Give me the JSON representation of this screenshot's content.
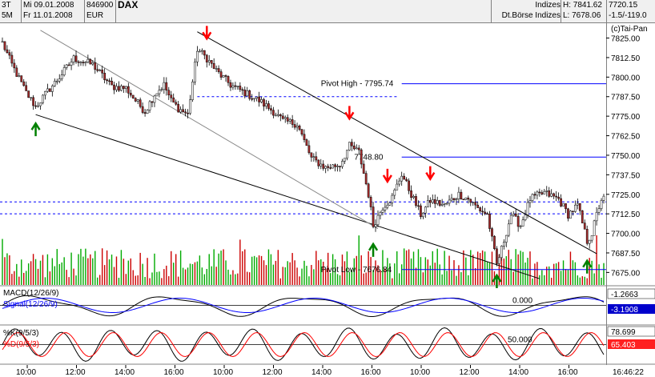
{
  "header": {
    "period_top": "3T",
    "period_bottom": "5M",
    "date_from": "Mi 09.01.2008",
    "date_to": "Fr 11.01.2008",
    "wkn": "846900",
    "currency": "EUR",
    "symbol": "DAX",
    "category": "Indizes",
    "exchange": "Dt.Börse Indizes",
    "high": "H: 7841.62",
    "low": "L: 7678.06",
    "last": "7720.15",
    "change": "-1.5/-119.0"
  },
  "colors": {
    "candle_up": "#ffffff",
    "candle_down": "#a52a2a",
    "volume_up": "#00aa00",
    "volume_down": "#cc0000",
    "trendline": "#000000",
    "pivot_line": "#0000ff",
    "arrow_down": "#ff0000",
    "arrow_up": "#008000",
    "macd": "#000000",
    "signal": "#0000ff",
    "stoch_k": "#000000",
    "stoch_d": "#ff0000"
  },
  "chart_data": {
    "type": "candlestick",
    "title": "DAX",
    "copyright": "(c)Tai-Pan",
    "ylim": [
      7667,
      7835
    ],
    "y_ticks": [
      "7825.00",
      "7812.50",
      "7800.00",
      "7787.50",
      "7775.00",
      "7762.50",
      "7750.00",
      "7737.50",
      "7725.00",
      "7712.50",
      "7700.00",
      "7687.50",
      "7675.00"
    ],
    "x_ticks": [
      "10:00",
      "12:00",
      "14:00",
      "16:00",
      "10:00",
      "12:00",
      "14:00",
      "16:00",
      "10:00",
      "12:00",
      "14:00",
      "16:00"
    ],
    "close_path": [
      {
        "t": 0,
        "p": 7822
      },
      {
        "t": 4,
        "p": 7808
      },
      {
        "t": 10,
        "p": 7790
      },
      {
        "t": 14,
        "p": 7781
      },
      {
        "t": 18,
        "p": 7789
      },
      {
        "t": 24,
        "p": 7800
      },
      {
        "t": 30,
        "p": 7812
      },
      {
        "t": 38,
        "p": 7808
      },
      {
        "t": 46,
        "p": 7794
      },
      {
        "t": 52,
        "p": 7793
      },
      {
        "t": 56,
        "p": 7785
      },
      {
        "t": 60,
        "p": 7778
      },
      {
        "t": 64,
        "p": 7789
      },
      {
        "t": 68,
        "p": 7795
      },
      {
        "t": 71,
        "p": 7785
      },
      {
        "t": 74,
        "p": 7780
      },
      {
        "t": 78,
        "p": 7776
      },
      {
        "t": 82,
        "p": 7818
      },
      {
        "t": 86,
        "p": 7812
      },
      {
        "t": 90,
        "p": 7804
      },
      {
        "t": 96,
        "p": 7795
      },
      {
        "t": 102,
        "p": 7790
      },
      {
        "t": 108,
        "p": 7785
      },
      {
        "t": 114,
        "p": 7778
      },
      {
        "t": 118,
        "p": 7772
      },
      {
        "t": 124,
        "p": 7770
      },
      {
        "t": 130,
        "p": 7748
      },
      {
        "t": 136,
        "p": 7742
      },
      {
        "t": 142,
        "p": 7744
      },
      {
        "t": 146,
        "p": 7756
      },
      {
        "t": 150,
        "p": 7752
      },
      {
        "t": 154,
        "p": 7725
      },
      {
        "t": 156,
        "p": 7705
      },
      {
        "t": 160,
        "p": 7717
      },
      {
        "t": 164,
        "p": 7723
      },
      {
        "t": 168,
        "p": 7738
      },
      {
        "t": 172,
        "p": 7725
      },
      {
        "t": 176,
        "p": 7712
      },
      {
        "t": 180,
        "p": 7721
      },
      {
        "t": 186,
        "p": 7718
      },
      {
        "t": 192,
        "p": 7725
      },
      {
        "t": 196,
        "p": 7722
      },
      {
        "t": 200,
        "p": 7716
      },
      {
        "t": 204,
        "p": 7712
      },
      {
        "t": 208,
        "p": 7680
      },
      {
        "t": 210,
        "p": 7690
      },
      {
        "t": 214,
        "p": 7712
      },
      {
        "t": 218,
        "p": 7705
      },
      {
        "t": 222,
        "p": 7722
      },
      {
        "t": 228,
        "p": 7726
      },
      {
        "t": 234,
        "p": 7722
      },
      {
        "t": 238,
        "p": 7712
      },
      {
        "t": 242,
        "p": 7718
      },
      {
        "t": 246,
        "p": 7695
      },
      {
        "t": 248,
        "p": 7700
      },
      {
        "t": 250,
        "p": 7712
      },
      {
        "t": 252,
        "p": 7722
      }
    ],
    "pivot_high": {
      "label": "Pivot High - 7795.74",
      "value": 7795.74
    },
    "level_2": {
      "label": "7748.80",
      "value": 7748.8
    },
    "pivot_low": {
      "label": "Pivot Low - 7676.84",
      "value": 7676.84
    },
    "dashed_levels": [
      7787.5,
      7720.15,
      7712.5
    ],
    "trendlines": [
      {
        "t1": 14,
        "p1": 7776,
        "t2": 226,
        "p2": 7671
      },
      {
        "t1": 82,
        "p1": 7829,
        "t2": 250,
        "p2": 7687
      },
      {
        "t1": 16,
        "p1": 7830,
        "t2": 158,
        "p2": 7703
      }
    ],
    "down_arrows": [
      86,
      146,
      162,
      180
    ],
    "up_arrows": [
      14,
      156,
      208,
      246
    ],
    "macd": {
      "label": "MACD(12/26/9)",
      "value": "-1.2663",
      "zero_label": "0.000"
    },
    "signal": {
      "label": "Signal(12/26/9)",
      "value": "-3.1908"
    },
    "stoch_k": {
      "label": "%K(9/5/3)",
      "value": "78.699"
    },
    "stoch_d": {
      "label": "%D(9/5/3)",
      "value": "65.403",
      "mid_label": "50.000"
    },
    "time_label": "16:46:22"
  }
}
